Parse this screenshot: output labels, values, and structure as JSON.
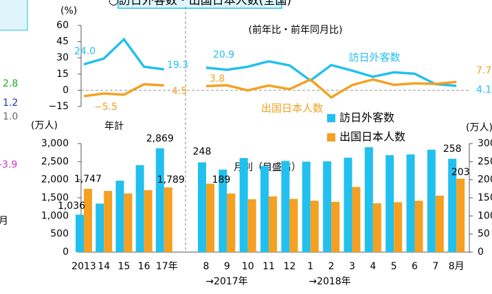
{
  "title": "○訪日外客数・出国日本人数(全国)",
  "fragments": [
    {
      "text": "2.8",
      "color": "#22aa22"
    },
    {
      "text": "1.2",
      "color": "#1a3a9a"
    },
    {
      "text": "1.0",
      "color": "#666666"
    },
    {
      "text": "-3.9",
      "color": "#cc33cc"
    },
    {
      "text": "月",
      "color": "#000000"
    }
  ],
  "chart_data": [
    {
      "type": "line",
      "ylabel": "(%)",
      "subtitle": "(前年比・前年同月比)",
      "ylim": [
        -15,
        60
      ],
      "yticks": [
        60,
        45,
        30,
        15,
        0,
        {
          "value": -15,
          "label": "−15"
        }
      ],
      "series": [
        {
          "name": "訪日外客数",
          "color": "#22c0ee",
          "values": [
            24.0,
            29.4,
            47.1,
            21.8,
            19.3,
            20.9,
            18.9,
            21.8,
            26.8,
            23.0,
            9.0,
            23.3,
            18.2,
            12.5,
            16.6,
            15.3,
            5.6,
            4.1
          ],
          "value_labels": [
            "24.0",
            null,
            null,
            null,
            "19.3",
            "20.9",
            null,
            null,
            null,
            null,
            null,
            null,
            null,
            null,
            null,
            null,
            null,
            "4.1"
          ]
        },
        {
          "name": "出国日本人数",
          "color": "#f5a020",
          "values": [
            -5.5,
            -3.0,
            -4.1,
            5.6,
            4.5,
            3.8,
            4.6,
            -0.1,
            4.4,
            1.0,
            10.0,
            -6.6,
            4.8,
            10.0,
            5.0,
            6.4,
            5.9,
            7.7
          ],
          "value_labels": [
            "−5.5",
            null,
            null,
            null,
            "4.5",
            "3.8",
            null,
            null,
            null,
            null,
            null,
            null,
            null,
            null,
            null,
            null,
            null,
            "7.7"
          ]
        }
      ]
    },
    {
      "type": "bar",
      "ylabel": "(万人)",
      "annotation": "年計",
      "categories": [
        "2013",
        "14",
        "15",
        "16",
        "17年"
      ],
      "ylim": [
        0,
        3000
      ],
      "yticks": [
        {
          "value": 3000,
          "label": "3,000"
        },
        {
          "value": 2500,
          "label": "2,500"
        },
        {
          "value": 2000,
          "label": "2,000"
        },
        {
          "value": 1500,
          "label": "1,500"
        },
        {
          "value": 1000,
          "label": "1,000"
        },
        500,
        0
      ],
      "series": [
        {
          "color": "#22c0ee",
          "values": [
            1036,
            1341,
            1974,
            2404,
            2869
          ],
          "value_labels": [
            "1,036",
            null,
            null,
            null,
            "2,869"
          ]
        },
        {
          "color": "#f5a020",
          "values": [
            1747,
            1690,
            1621,
            1712,
            1789
          ],
          "value_labels": [
            "1,747",
            null,
            null,
            null,
            "1,789"
          ]
        }
      ]
    },
    {
      "type": "bar",
      "y2label": "(万人)",
      "annotation": "月別（目盛右）",
      "categories": [
        "8",
        "9",
        "10",
        "11",
        "12",
        "1",
        "2",
        "3",
        "4",
        "5",
        "6",
        "7",
        "8月"
      ],
      "category_notes": [
        "→2017年",
        "→2018年"
      ],
      "y2lim": [
        0,
        300
      ],
      "y2ticks": [
        300,
        250,
        200,
        150,
        100,
        50,
        0
      ],
      "series": [
        {
          "name": "訪日外客数",
          "axis": "y2",
          "color": "#22c0ee",
          "values": [
            248,
            228,
            260,
            238,
            252,
            250,
            251,
            261,
            290,
            268,
            270,
            283,
            258
          ],
          "value_labels": [
            "248",
            null,
            null,
            null,
            null,
            null,
            null,
            null,
            null,
            null,
            null,
            null,
            "258"
          ]
        },
        {
          "name": "出国日本人数",
          "axis": "y2",
          "color": "#f5a020",
          "values": [
            189,
            162,
            146,
            154,
            147,
            142,
            139,
            180,
            135,
            138,
            142,
            156,
            203
          ],
          "value_labels": [
            "189",
            null,
            null,
            null,
            null,
            null,
            null,
            null,
            null,
            null,
            null,
            null,
            "203"
          ]
        }
      ]
    }
  ]
}
